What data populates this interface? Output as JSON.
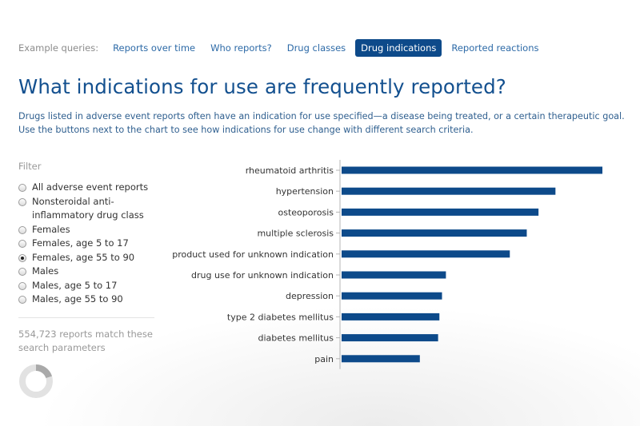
{
  "queries": {
    "label": "Example queries:",
    "items": [
      {
        "label": "Reports over time",
        "active": false
      },
      {
        "label": "Who reports?",
        "active": false
      },
      {
        "label": "Drug classes",
        "active": false
      },
      {
        "label": "Drug indications",
        "active": true
      },
      {
        "label": "Reported reactions",
        "active": false
      }
    ]
  },
  "title": "What indications for use are frequently reported?",
  "description": "Drugs listed in adverse event reports often have an indication for use specified—a disease being treated, or a certain therapeutic goal. Use the buttons next to the chart to see how indications for use change with different search criteria.",
  "filter": {
    "label": "Filter",
    "options": [
      {
        "label": "All adverse event reports",
        "checked": false
      },
      {
        "label": "Nonsteroidal anti-inflammatory drug class",
        "checked": false
      },
      {
        "label": "Females",
        "checked": false
      },
      {
        "label": "Females, age 5 to 17",
        "checked": false
      },
      {
        "label": "Females, age 55 to 90",
        "checked": true
      },
      {
        "label": "Males",
        "checked": false
      },
      {
        "label": "Males, age 5 to 17",
        "checked": false
      },
      {
        "label": "Males, age 55 to 90",
        "checked": false
      }
    ],
    "count_text": "554,723 reports match these search parameters"
  },
  "colors": {
    "bar": "#0d4a8a",
    "accent": "#13508f",
    "donut_track": "#e2e2e2",
    "donut_fill": "#a9a9a9"
  },
  "donut_fraction": 0.2,
  "chart_data": {
    "type": "bar",
    "orientation": "horizontal",
    "categories": [
      "rheumatoid arthritis",
      "hypertension",
      "osteoporosis",
      "multiple sclerosis",
      "product used for unknown indication",
      "drug use for unknown indication",
      "depression",
      "type 2 diabetes mellitus",
      "diabetes mellitus",
      "pain"
    ],
    "values": [
      100,
      82,
      75.5,
      71,
      64.5,
      40,
      38.5,
      37.5,
      37,
      30
    ],
    "title": "",
    "xlabel": "",
    "ylabel": "",
    "xlim": [
      0,
      100
    ],
    "grid": false
  }
}
